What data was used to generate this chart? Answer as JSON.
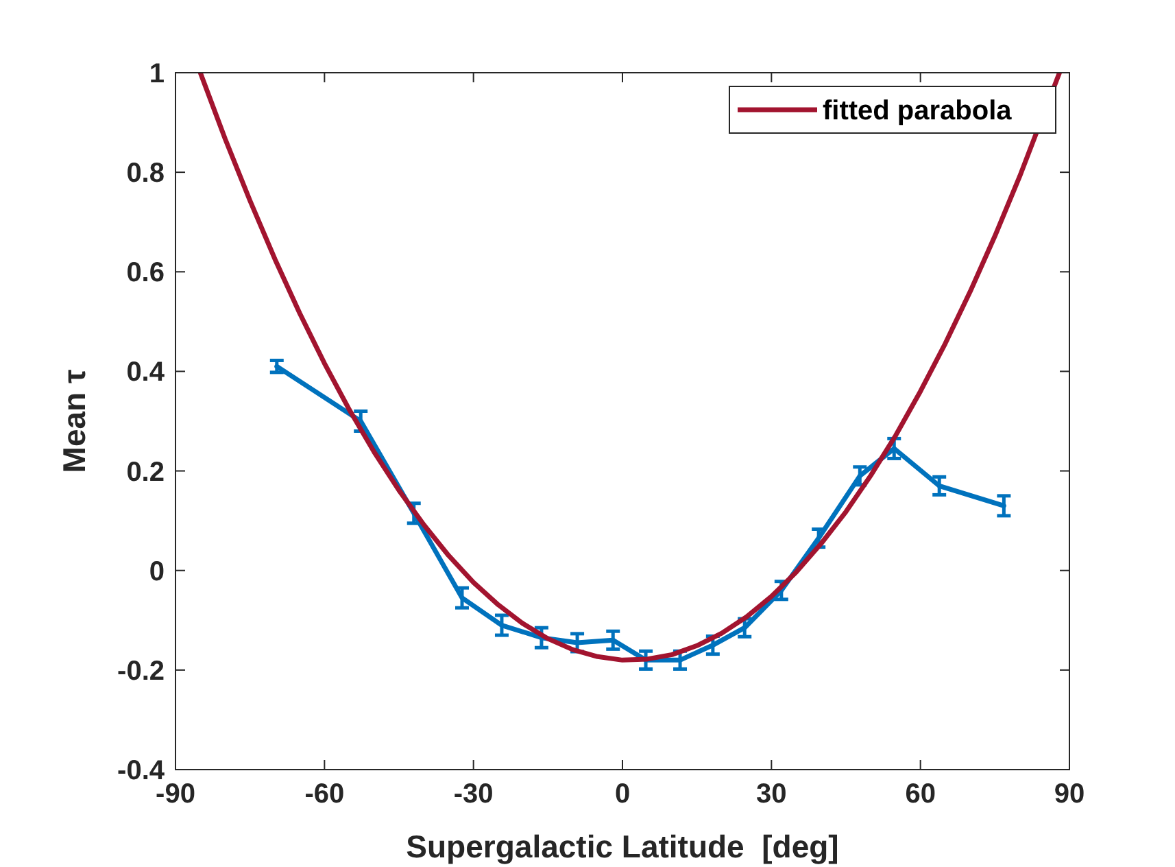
{
  "chart_data": {
    "type": "line",
    "xlabel": "Supergalactic Latitude  [deg]",
    "ylabel": "Mean τ",
    "xlim": [
      -90,
      90
    ],
    "xticks": [
      -90,
      -60,
      -30,
      0,
      30,
      60,
      90
    ],
    "ylim": [
      -0.4,
      1
    ],
    "yticks": [
      -0.4,
      -0.2,
      0,
      0.2,
      0.4,
      0.6,
      0.8,
      1
    ],
    "grid": false,
    "legend": "top right",
    "line_style": "solid",
    "marker": "none",
    "series": [
      {
        "color": "#0072bd",
        "x": [
          -69.6,
          -52.7,
          -42,
          -32.3,
          -24.3,
          -16.3,
          -9.1,
          -1.9,
          4.7,
          11.6,
          18.2,
          24.6,
          32,
          39.5,
          47.8,
          54.7,
          63.8,
          76.8
        ],
        "values": [
          0.41,
          0.3,
          0.115,
          -0.055,
          -0.11,
          -0.135,
          -0.145,
          -0.14,
          -0.18,
          -0.18,
          -0.15,
          -0.115,
          -0.04,
          0.065,
          0.19,
          0.245,
          0.17,
          0.13
        ],
        "errors": [
          0.012,
          0.02,
          0.02,
          0.02,
          0.02,
          0.02,
          0.018,
          0.018,
          0.018,
          0.018,
          0.018,
          0.018,
          0.018,
          0.018,
          0.018,
          0.02,
          0.018,
          0.02
        ]
      },
      {
        "name": "fitted parabola",
        "color": "#a2142f",
        "x": [
          -85,
          -80,
          -75,
          -70,
          -65,
          -60,
          -55,
          -50,
          -45,
          -40,
          -35,
          -30,
          -25,
          -20,
          -15,
          -10,
          -5,
          0,
          5,
          10,
          15,
          20,
          25,
          30,
          35,
          40,
          45,
          50,
          55,
          60,
          65,
          70,
          75,
          80,
          88
        ],
        "values": [
          1,
          0.867,
          0.743,
          0.626,
          0.517,
          0.416,
          0.323,
          0.238,
          0.161,
          0.092,
          0.03,
          -0.024,
          -0.069,
          -0.107,
          -0.137,
          -0.159,
          -0.173,
          -0.18,
          -0.178,
          -0.169,
          -0.151,
          -0.126,
          -0.093,
          -0.052,
          -0.003,
          0.054,
          0.118,
          0.191,
          0.271,
          0.36,
          0.456,
          0.56,
          0.672,
          0.792,
          1
        ]
      }
    ]
  }
}
